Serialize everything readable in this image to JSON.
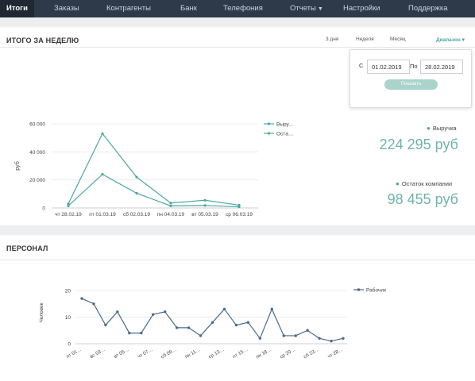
{
  "nav": {
    "items": [
      {
        "label": "Итоги",
        "active": true
      },
      {
        "label": "Заказы"
      },
      {
        "label": "Контрагенты"
      },
      {
        "label": "Банк"
      },
      {
        "label": "Телефония"
      },
      {
        "label": "Отчеты",
        "dropdown": true
      },
      {
        "label": "Настройки"
      },
      {
        "label": "Поддержка"
      }
    ]
  },
  "weekly": {
    "title": "ИТОГО ЗА НЕДЕЛЮ",
    "ranges": [
      "3 дня",
      "Неделя",
      "Месяц"
    ],
    "dropdown_label": "Диапазон",
    "period": {
      "from_label": "С",
      "from_value": "01.02.2019",
      "to_label": "По",
      "to_value": "28.02.2019",
      "show_button": "Показать"
    },
    "revenue_label": "Выручка",
    "revenue_value": "224 295 руб",
    "balance_label": "Остаток компании",
    "balance_value": "98 455 руб"
  },
  "staff": {
    "title": "ПЕРСОНАЛ"
  },
  "colors": {
    "accent": "#4ca8a0",
    "line_blue": "#4a6b8c",
    "nav_bg": "#2e3a4a"
  },
  "chart_data": [
    {
      "type": "line",
      "ylabel": "руб",
      "ylim": [
        0,
        60000
      ],
      "y_ticks": [
        "0",
        "20 000",
        "40 000",
        "60 000"
      ],
      "categories": [
        "чт 28.02.19",
        "пт 01.03.19",
        "сб 02.03.19",
        "пн 04.03.19",
        "вт 05.03.19",
        "ср 06.03.19"
      ],
      "legend_position": "top-right",
      "series": [
        {
          "name": "Выру…",
          "color": "#4ca8a0",
          "values": [
            3000,
            53000,
            22000,
            3500,
            5500,
            2000
          ]
        },
        {
          "name": "Оста…",
          "color": "#4ca8a0",
          "values": [
            1500,
            24000,
            10500,
            1500,
            1800,
            800
          ]
        }
      ]
    },
    {
      "type": "line",
      "ylabel": "Человек",
      "ylim": [
        0,
        20
      ],
      "y_ticks": [
        "0",
        "10",
        "20"
      ],
      "legend_position": "top-right",
      "tick_labels": [
        "пт 01…",
        "вс 03…",
        "вт 05…",
        "чт 07…",
        "сб 09…",
        "пн 11…",
        "ср 13…",
        "пт 15…",
        "пн 18…",
        "ср 20…",
        "сб 23…",
        "чт 28…"
      ],
      "series": [
        {
          "name": "Рабочих",
          "color": "#4a6b8c",
          "values": [
            17,
            15,
            7,
            12,
            4,
            4,
            11,
            12,
            6,
            6,
            3,
            8,
            13,
            7,
            8,
            2,
            13,
            3,
            3,
            5,
            2,
            1,
            2
          ]
        }
      ]
    }
  ]
}
